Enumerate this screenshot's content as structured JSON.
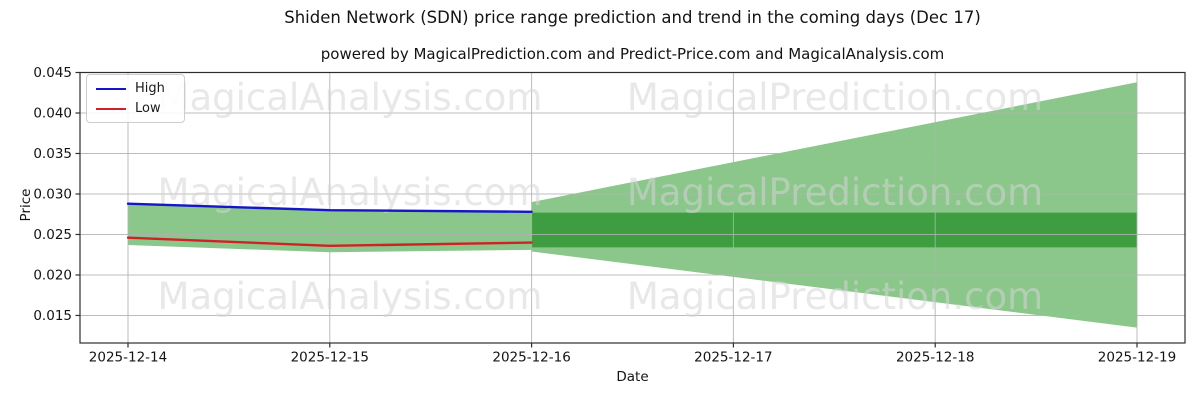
{
  "chart_data": {
    "type": "area",
    "title": "Shiden Network (SDN) price range prediction and trend in the coming days (Dec 17)",
    "subtitle": "powered by MagicalPrediction.com and Predict-Price.com and MagicalAnalysis.com",
    "xlabel": "Date",
    "ylabel": "Price",
    "x_categories": [
      "2025-12-14",
      "2025-12-15",
      "2025-12-16",
      "2025-12-17",
      "2025-12-18",
      "2025-12-19"
    ],
    "y_tick_values": [
      0.015,
      0.02,
      0.025,
      0.03,
      0.035,
      0.04,
      0.045
    ],
    "y_tick_labels": [
      "0.015",
      "0.020",
      "0.025",
      "0.030",
      "0.035",
      "0.040",
      "0.045"
    ],
    "ylim": [
      0.0116,
      0.045
    ],
    "grid": true,
    "legend_position": "upper left",
    "series": [
      {
        "name": "High",
        "color": "#1616c8",
        "x": [
          0,
          1,
          2
        ],
        "values": [
          0.0288,
          0.028,
          0.0278
        ]
      },
      {
        "name": "Low",
        "color": "#cd2328",
        "x": [
          0,
          1,
          2
        ],
        "values": [
          0.0246,
          0.0236,
          0.024
        ]
      }
    ],
    "bands": [
      {
        "name": "history-range",
        "color": "#8bc78b",
        "x": [
          0,
          1,
          2
        ],
        "upper": [
          0.0288,
          0.028,
          0.0278
        ],
        "lower": [
          0.0237,
          0.0228,
          0.0231
        ]
      },
      {
        "name": "prediction-fan",
        "color": "#8bc78b",
        "x": [
          2,
          5
        ],
        "upper": [
          0.029,
          0.0438
        ],
        "lower": [
          0.0229,
          0.0135
        ]
      },
      {
        "name": "prediction-band",
        "color": "#3e9d41",
        "x": [
          2,
          5
        ],
        "upper": [
          0.0277,
          0.0277
        ],
        "lower": [
          0.0234,
          0.0234
        ]
      }
    ]
  },
  "legend": {
    "items": [
      {
        "label": "High",
        "color": "#1616c8"
      },
      {
        "label": "Low",
        "color": "#cd2328"
      }
    ]
  },
  "watermark": {
    "left_text": "MagicalAnalysis.com",
    "right_text": "MagicalPrediction.com",
    "color": "#d6d6d6"
  }
}
